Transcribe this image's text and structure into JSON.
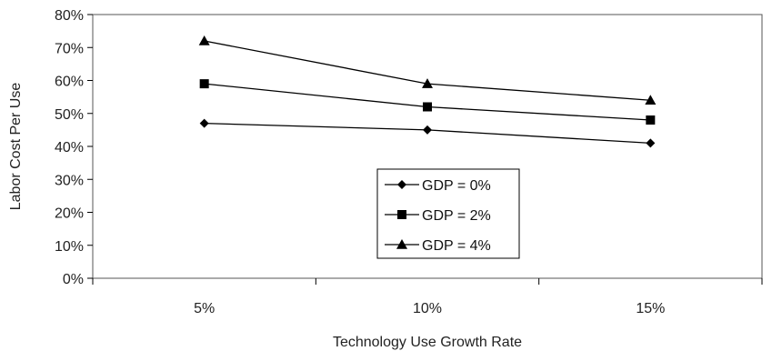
{
  "chart_data": {
    "type": "line",
    "xlabel": "Technology Use Growth Rate",
    "ylabel": "Labor Cost Per Use",
    "categories": [
      "5%",
      "10%",
      "15%"
    ],
    "ylim": [
      0,
      80
    ],
    "y_ticks": [
      "0%",
      "10%",
      "20%",
      "30%",
      "40%",
      "50%",
      "60%",
      "70%",
      "80%"
    ],
    "grid": false,
    "legend_position": "center",
    "series": [
      {
        "name": "GDP = 0%",
        "marker": "diamond",
        "values": [
          47,
          45,
          41
        ]
      },
      {
        "name": "GDP = 2%",
        "marker": "square",
        "values": [
          59,
          52,
          48
        ]
      },
      {
        "name": "GDP = 4%",
        "marker": "triangle",
        "values": [
          72,
          59,
          54
        ]
      }
    ],
    "colors": {
      "line": "#000000",
      "axis": "#000000",
      "frame": "#555555"
    }
  }
}
